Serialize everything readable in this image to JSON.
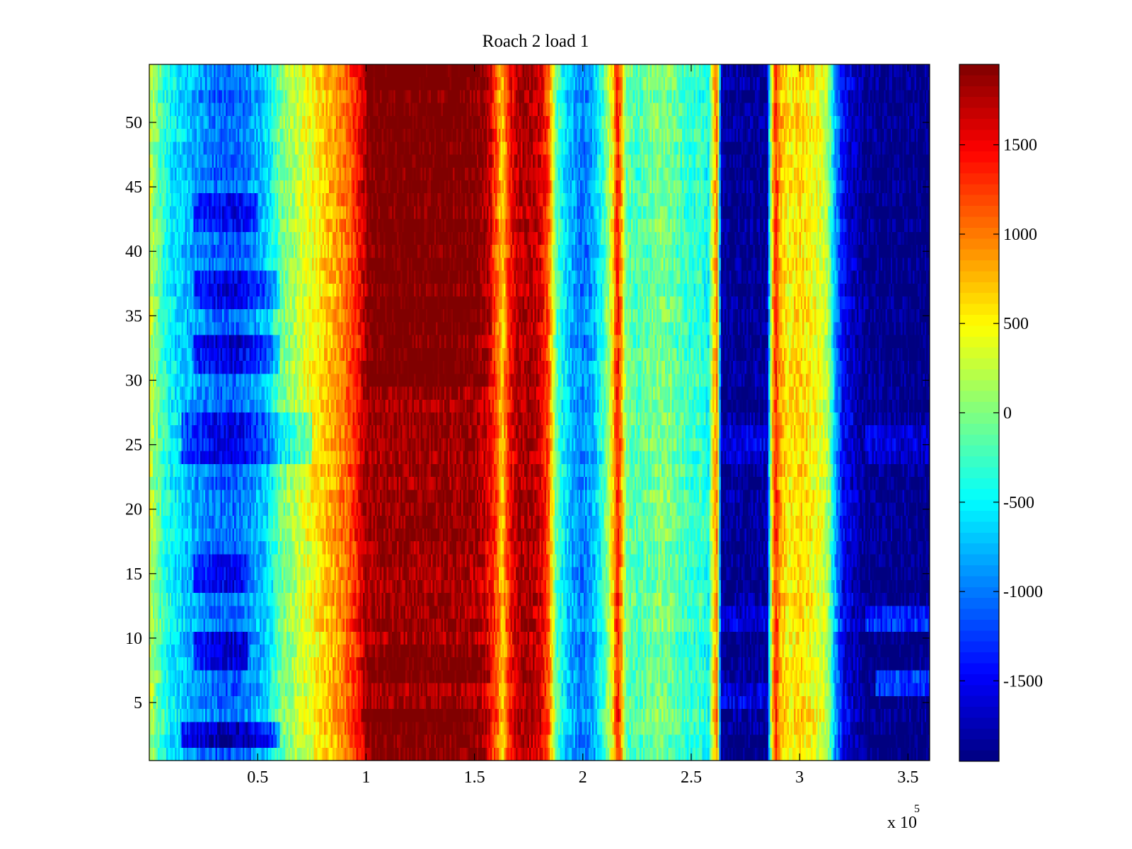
{
  "chart_data": {
    "type": "heatmap",
    "title": "Roach 2 load 1",
    "x_multiplier": "x 10",
    "x_multiplier_exponent": "5",
    "xlim": [
      0.0,
      3.6
    ],
    "ylim": [
      0.5,
      54.5
    ],
    "x_ticks": [
      0.5,
      1,
      1.5,
      2,
      2.5,
      3,
      3.5
    ],
    "x_tick_labels": [
      "0.5",
      "1",
      "1.5",
      "2",
      "2.5",
      "3",
      "3.5"
    ],
    "y_ticks": [
      5,
      10,
      15,
      20,
      25,
      30,
      35,
      40,
      45,
      50
    ],
    "y_tick_labels": [
      "5",
      "10",
      "15",
      "20",
      "25",
      "30",
      "35",
      "40",
      "45",
      "50"
    ],
    "rows": 54,
    "colormap": "jet",
    "clim": [
      -1950,
      1950
    ],
    "colorbar_ticks": [
      1500,
      1000,
      500,
      0,
      -500,
      -1000,
      -1500
    ],
    "colorbar_tick_labels": [
      "1500",
      "1000",
      "500",
      "0",
      "-500",
      "-1000",
      "-1500"
    ],
    "column_profile": {
      "x": [
        0.0,
        0.05,
        0.1,
        0.2,
        0.3,
        0.4,
        0.5,
        0.55,
        0.6,
        0.7,
        0.75,
        0.8,
        0.85,
        0.9,
        0.95,
        1.0,
        1.1,
        1.2,
        1.3,
        1.4,
        1.5,
        1.55,
        1.6,
        1.63,
        1.66,
        1.7,
        1.75,
        1.8,
        1.84,
        1.88,
        1.92,
        1.95,
        2.0,
        2.05,
        2.1,
        2.14,
        2.16,
        2.18,
        2.2,
        2.25,
        2.3,
        2.35,
        2.4,
        2.45,
        2.5,
        2.55,
        2.58,
        2.6,
        2.62,
        2.64,
        2.66,
        2.7,
        2.8,
        2.85,
        2.87,
        2.89,
        2.91,
        2.95,
        3.0,
        3.05,
        3.1,
        3.13,
        3.16,
        3.2,
        3.25,
        3.28,
        3.3,
        3.4,
        3.5,
        3.6
      ],
      "values": [
        300,
        -200,
        -500,
        -800,
        -1050,
        -1100,
        -800,
        -600,
        -100,
        300,
        450,
        650,
        800,
        1000,
        1300,
        1800,
        1850,
        1850,
        1850,
        1850,
        1800,
        1650,
        1200,
        600,
        1400,
        1750,
        1800,
        1650,
        1200,
        -200,
        -600,
        -800,
        -1000,
        -800,
        -200,
        600,
        1500,
        800,
        -100,
        -200,
        -100,
        0,
        -50,
        -200,
        -300,
        -300,
        -500,
        500,
        1000,
        -1850,
        -1900,
        -1900,
        -1900,
        -1900,
        400,
        1400,
        800,
        500,
        650,
        500,
        350,
        200,
        -700,
        -1500,
        -1700,
        -1800,
        -1900,
        -1950,
        -1950,
        -1950
      ]
    },
    "row_adjustments": [
      {
        "rows": [
          2,
          3
        ],
        "x_range": [
          0.15,
          0.6
        ],
        "delta": -700
      },
      {
        "rows": [
          8,
          10
        ],
        "x_range": [
          0.2,
          0.45
        ],
        "delta": -500
      },
      {
        "rows": [
          14,
          16
        ],
        "x_range": [
          0.2,
          0.45
        ],
        "delta": -400
      },
      {
        "rows": [
          24,
          27
        ],
        "x_range": [
          0.15,
          0.75
        ],
        "delta": -500
      },
      {
        "rows": [
          31,
          33
        ],
        "x_range": [
          0.2,
          0.6
        ],
        "delta": -500
      },
      {
        "rows": [
          36,
          38
        ],
        "x_range": [
          0.2,
          0.6
        ],
        "delta": -450
      },
      {
        "rows": [
          42,
          44
        ],
        "x_range": [
          0.2,
          0.5
        ],
        "delta": -400
      },
      {
        "rows": [
          6,
          7
        ],
        "x_range": [
          3.35,
          3.6
        ],
        "delta": 700
      },
      {
        "rows": [
          11,
          12
        ],
        "x_range": [
          3.3,
          3.6
        ],
        "delta": 600
      },
      {
        "rows": [
          24,
          26
        ],
        "x_range": [
          3.3,
          3.6
        ],
        "delta": 300
      },
      {
        "rows": [
          5,
          6
        ],
        "x_range": [
          2.64,
          2.85
        ],
        "delta": 350
      },
      {
        "rows": [
          24,
          26
        ],
        "x_range": [
          2.64,
          2.85
        ],
        "delta": 300
      },
      {
        "rows": [
          11,
          12
        ],
        "x_range": [
          2.64,
          2.85
        ],
        "delta": 250
      },
      {
        "rows": [
          30,
          54
        ],
        "x_range": [
          1.0,
          1.58
        ],
        "delta": 200
      },
      {
        "rows": [
          1,
          4
        ],
        "x_range": [
          1.0,
          1.58
        ],
        "delta": 200
      },
      {
        "rows": [
          7,
          9
        ],
        "x_range": [
          1.0,
          1.58
        ],
        "delta": 200
      }
    ]
  }
}
